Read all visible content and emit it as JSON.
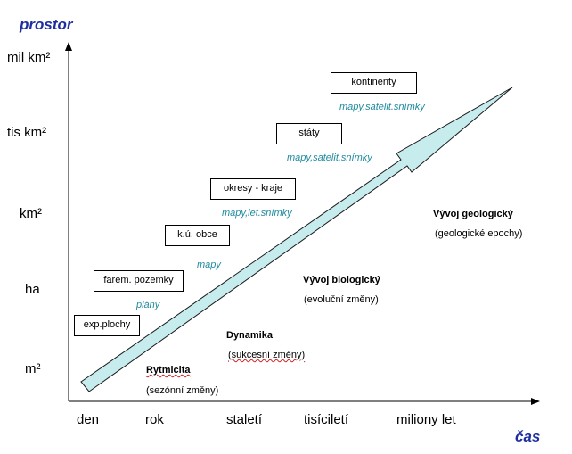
{
  "axes": {
    "y_title": "prostor",
    "x_title": "čas",
    "y_labels": [
      "mil km²",
      "tis km²",
      "km²",
      "ha",
      "m²"
    ],
    "x_labels": [
      "den",
      "rok",
      "staletí",
      "tisíciletí",
      "miliony let"
    ]
  },
  "boxes": [
    {
      "label": "kontinenty"
    },
    {
      "label": "státy"
    },
    {
      "label": "okresy - kraje"
    },
    {
      "label": "k.ú. obce"
    },
    {
      "label": "farem. pozemky"
    },
    {
      "label": "exp.plochy"
    }
  ],
  "sources": [
    "mapy,satelit.snímky",
    "mapy,satelit.snímky",
    "mapy,let.snímky",
    "mapy",
    "plány"
  ],
  "phases": [
    {
      "title": "Vývoj geologický",
      "sub": "(geologické epochy)"
    },
    {
      "title": "Vývoj biologický",
      "sub": "(evoluční změny)"
    },
    {
      "title": "Dynamika",
      "sub": "(sukcesní změny)"
    },
    {
      "title": "Rytmicita",
      "sub": "(sezónní změny)"
    }
  ],
  "colors": {
    "axis_title": "#1f2f9e",
    "source_text": "#1f8a9e",
    "arrow_fill": "#c7ecee"
  }
}
